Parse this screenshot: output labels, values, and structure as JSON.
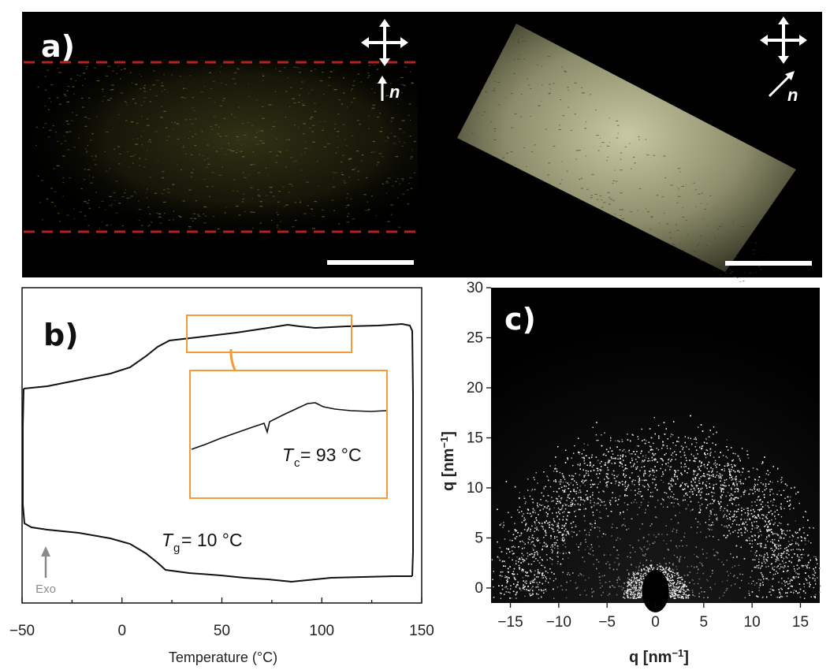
{
  "panel_a": {
    "label": "a)",
    "left_image": {
      "director": "n"
    },
    "right_image": {
      "director": "n"
    }
  },
  "panel_b": {
    "label": "b)",
    "xlabel": "Temperature (°C)",
    "exo_label": "Exo",
    "tg": {
      "symbol": "T",
      "sub": "g",
      "value": " = 10 °C"
    },
    "tc": {
      "symbol": "T",
      "sub": "c",
      "value": " = 93 °C"
    }
  },
  "panel_c": {
    "label": "c)",
    "xlabel": "q [nm",
    "ylabel": "q [nm",
    "unit_exp": "−1",
    "unit_close": "]"
  },
  "chart_data": [
    {
      "type": "line",
      "title": "",
      "xlabel": "Temperature (°C)",
      "ylabel": "",
      "xlim": [
        -50,
        150
      ],
      "xticks": [
        "−50",
        "0",
        "50",
        "100",
        "150"
      ],
      "series": [
        {
          "x": [
            -48,
            -30,
            -10,
            5,
            15,
            22,
            30,
            50,
            70,
            80,
            88,
            100,
            120,
            140,
            147
          ],
          "y": [
            0.6,
            0.62,
            0.66,
            0.71,
            0.77,
            0.84,
            0.86,
            0.88,
            0.9,
            0.92,
            0.93,
            0.915,
            0.915,
            0.92,
            0.93
          ]
        },
        {
          "x": [
            -48,
            -30,
            -10,
            5,
            15,
            22,
            30,
            50,
            70,
            88,
            100,
            120,
            147
          ],
          "y": [
            0.26,
            0.24,
            0.22,
            0.2,
            0.17,
            0.12,
            0.11,
            0.105,
            0.1,
            0.09,
            0.1,
            0.1,
            0.1
          ]
        }
      ],
      "annotations": [
        "Tg = 10 °C",
        "Tc = 93 °C",
        "Exo"
      ]
    },
    {
      "type": "heatmap",
      "title": "",
      "xlabel": "q [nm−1]",
      "ylabel": "q [nm−1]",
      "xlim": [
        -17,
        17
      ],
      "ylim": [
        -1.5,
        30
      ],
      "xticks": [
        -15,
        -10,
        -5,
        0,
        5,
        10,
        15
      ],
      "yticks": [
        0,
        5,
        10,
        15,
        20,
        25,
        30
      ],
      "features": [
        {
          "name": "",
          "q_center": 14,
          "q_halfwidth": 3,
          "intensity": "high"
        },
        {
          "name": "",
          "q_center": 2.5,
          "q_halfwidth": 1,
          "intensity": "high"
        }
      ]
    }
  ],
  "colors": {
    "background": "#ffffff",
    "panel_a_bg": "#000000",
    "dashed_line": "#b22222",
    "orange": "#f59a3b",
    "curve": "#111111",
    "text": "#222222",
    "exo": "#8a8a8a"
  }
}
